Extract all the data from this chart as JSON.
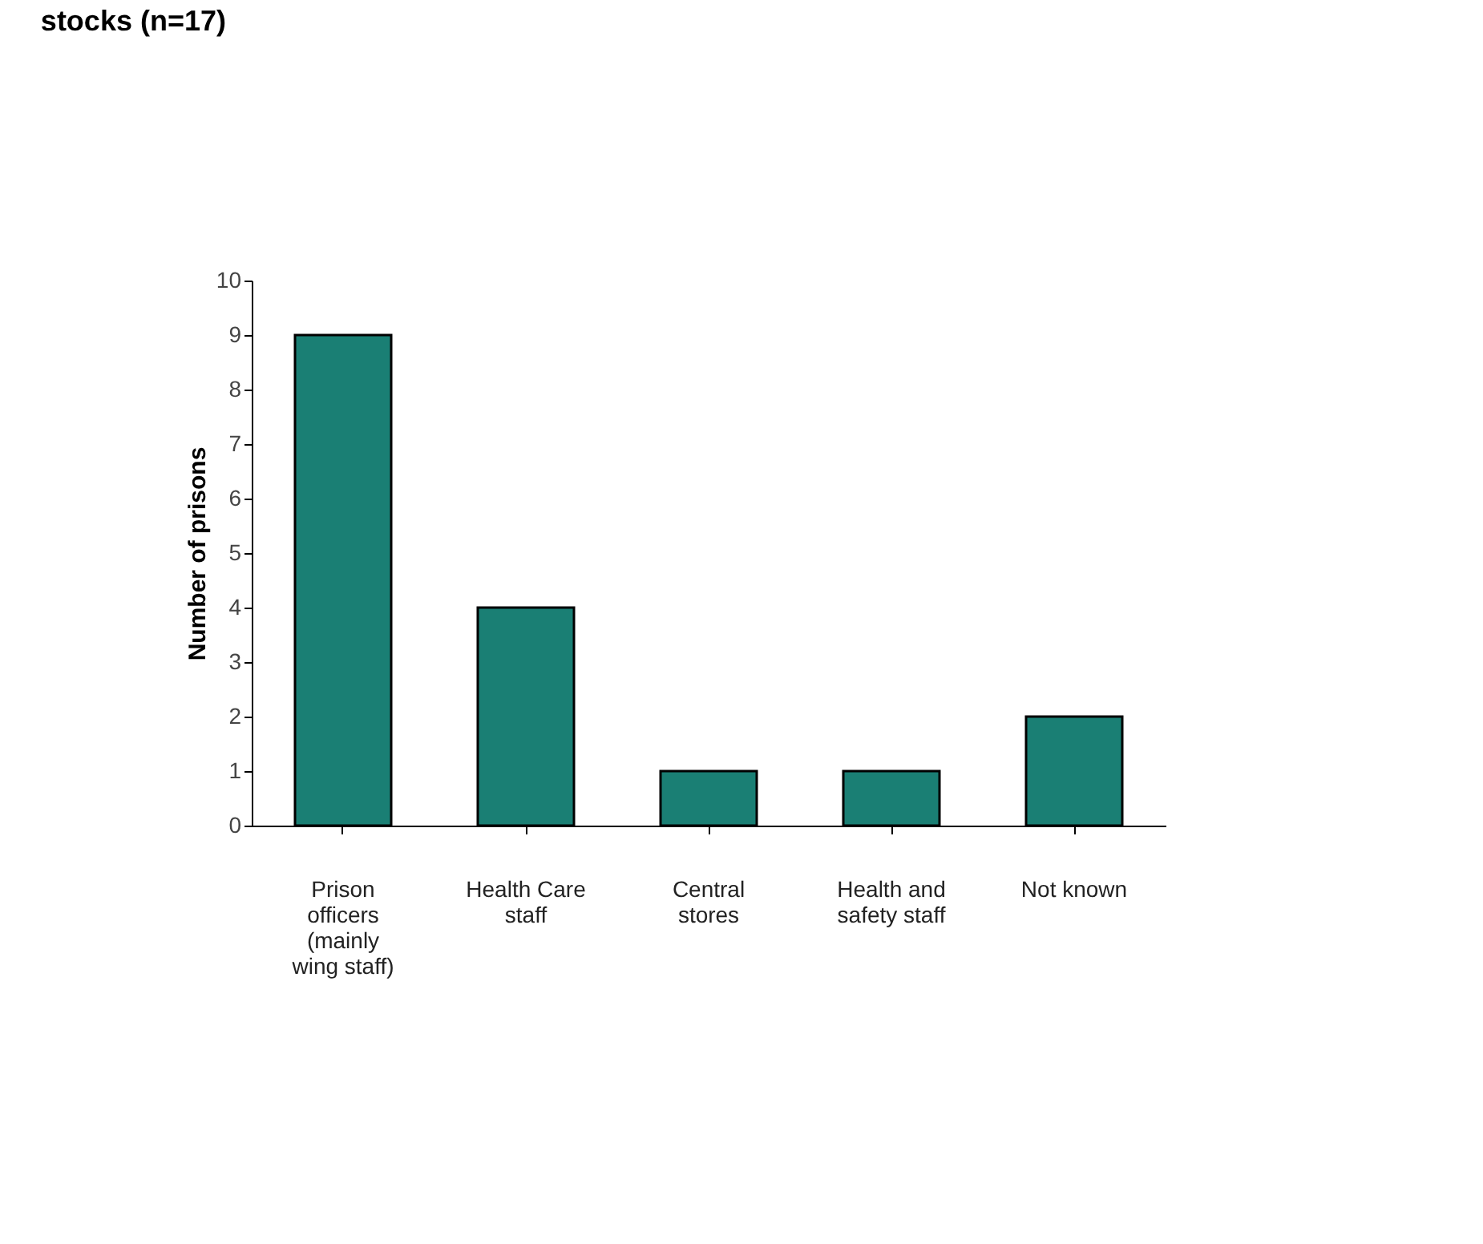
{
  "chart_data": {
    "type": "bar",
    "title": "stocks (n=17)",
    "ylabel": "Number of prisons",
    "categories": [
      "Prison\nofficers\n(mainly\nwing staff)",
      "Health Care\nstaff",
      "Central\nstores",
      "Health and\nsafety staff",
      "Not known"
    ],
    "values": [
      9,
      4,
      1,
      1,
      2
    ],
    "color": "#1a7f74",
    "ylim": [
      0,
      10
    ],
    "yticks": [
      0,
      1,
      2,
      3,
      4,
      5,
      6,
      7,
      8,
      9,
      10
    ],
    "grid": false
  }
}
